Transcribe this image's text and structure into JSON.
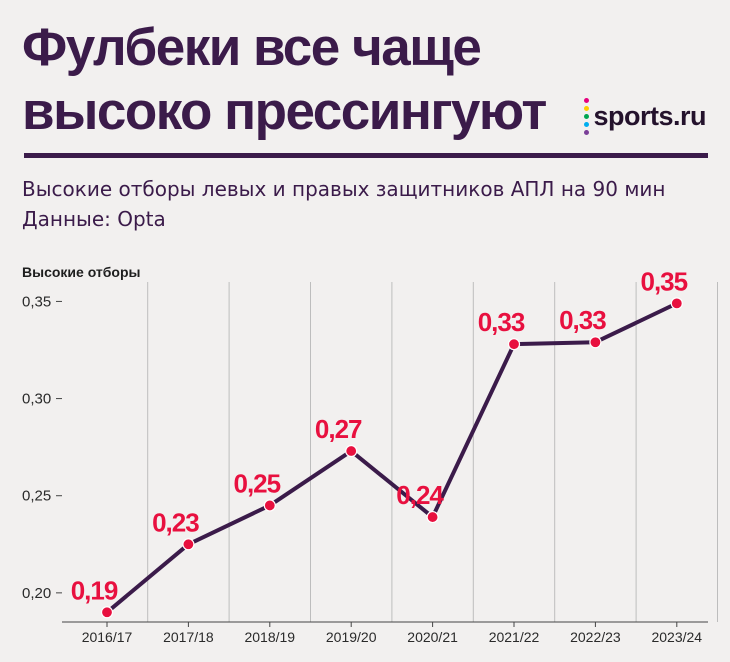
{
  "header": {
    "title_line1": "Фулбеки все чаще",
    "title_line2": "высоко прессингуют",
    "logo_text": "sports.ru",
    "subtitle_line1": "Высокие отборы левых и правых защитников АПЛ на 90 мин",
    "subtitle_line2": "Данные: Opta"
  },
  "colors": {
    "title": "#3b1b4a",
    "line": "#3b1b4a",
    "marker": "#e8103f",
    "grid": "#bdbdbd",
    "logo_dots": [
      "#e6007e",
      "#ffcc00",
      "#00a651",
      "#00aeef",
      "#7b3f98"
    ]
  },
  "chart_data": {
    "type": "line",
    "title": "Фулбеки все чаще высоко прессингуют",
    "ylabel": "Высокие отборы",
    "xlabel": "",
    "categories": [
      "2016/17",
      "2017/18",
      "2018/19",
      "2019/20",
      "2020/21",
      "2021/22",
      "2022/23",
      "2023/24"
    ],
    "series": [
      {
        "name": "Высокие отборы",
        "values": [
          0.19,
          0.225,
          0.245,
          0.273,
          0.239,
          0.328,
          0.329,
          0.349
        ]
      }
    ],
    "data_labels": [
      "0,19",
      "0,23",
      "0,25",
      "0,27",
      "0,24",
      "0,33",
      "0,33",
      "0,35"
    ],
    "yticks": [
      0.2,
      0.25,
      0.3,
      0.35
    ],
    "ytick_labels": [
      "0,20",
      "0,25",
      "0,30",
      "0,35"
    ],
    "ylim": [
      0.185,
      0.36
    ],
    "grid": "vertical"
  }
}
